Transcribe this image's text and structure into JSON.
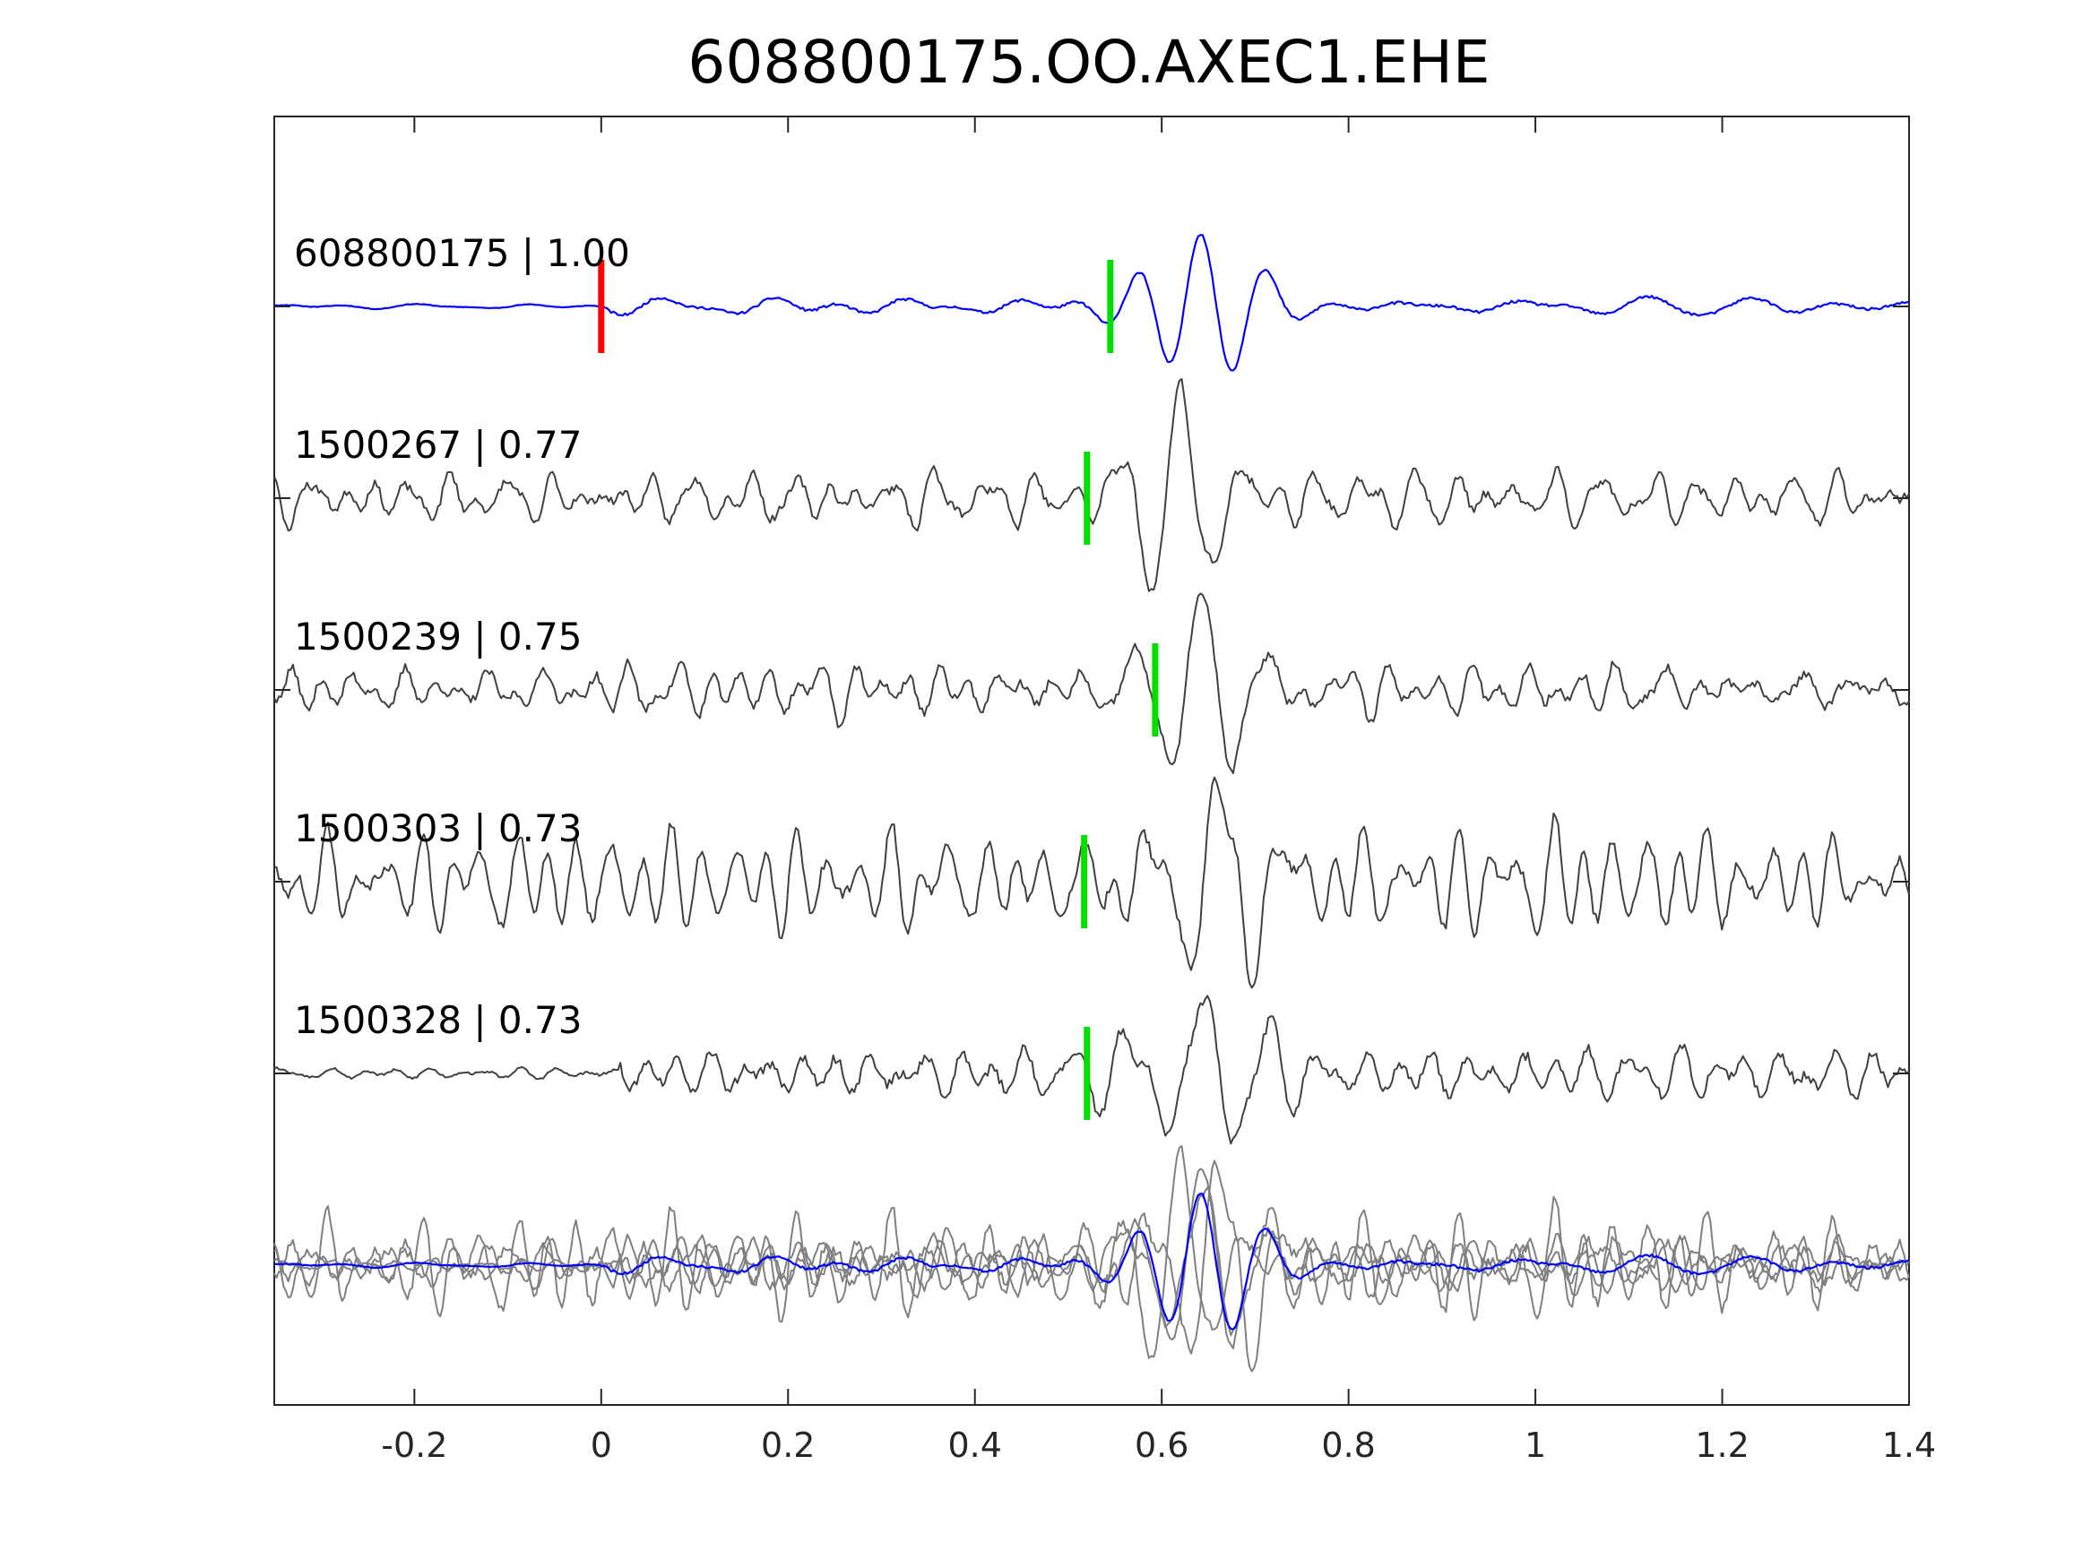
{
  "chart_data": {
    "type": "line",
    "title": "608800175.OO.AXEC1.EHE",
    "xlabel": "",
    "ylabel": "",
    "xlim": [
      -0.35,
      1.4
    ],
    "xticks": [
      -0.2,
      0,
      0.2,
      0.4,
      0.6,
      0.8,
      1,
      1.2,
      1.4
    ],
    "xtick_labels": [
      "-0.2",
      "0",
      "0.2",
      "0.4",
      "0.6",
      "0.8",
      "1",
      "1.2",
      "1.4"
    ],
    "grid": false,
    "colors": {
      "reference": "#0000ff",
      "correlated": "#404040",
      "overlay": "#808080",
      "pick_red": "#ff0000",
      "pick_green": "#00e000"
    },
    "series": [
      {
        "label": "608800175 | 1.00",
        "color": "#0000ff",
        "red_pick_time": 0.0,
        "green_pick_time": 0.545,
        "onset": 0.0,
        "event_center": 0.64,
        "noise_amplitude": 0.1,
        "event_amplitude": 0.75,
        "seed": 11
      },
      {
        "label": "1500267 | 0.77",
        "color": "#404040",
        "green_pick_time": 0.52,
        "onset": -0.35,
        "event_center": 0.62,
        "noise_amplitude": 0.3,
        "event_amplitude": 0.85,
        "seed": 23
      },
      {
        "label": "1500239 | 0.75",
        "color": "#404040",
        "green_pick_time": 0.593,
        "onset": -0.35,
        "event_center": 0.64,
        "noise_amplitude": 0.32,
        "event_amplitude": 0.85,
        "seed": 37
      },
      {
        "label": "1500303 | 0.73",
        "color": "#404040",
        "green_pick_time": 0.517,
        "onset": -0.35,
        "event_center": 0.66,
        "noise_amplitude": 0.4,
        "event_amplitude": 0.9,
        "seed": 41
      },
      {
        "label": "1500328 | 0.73",
        "color": "#404040",
        "green_pick_time": 0.52,
        "onset": 0.02,
        "event_center": 0.64,
        "noise_amplitude": 0.38,
        "event_amplitude": 0.85,
        "seed": 53
      }
    ]
  }
}
